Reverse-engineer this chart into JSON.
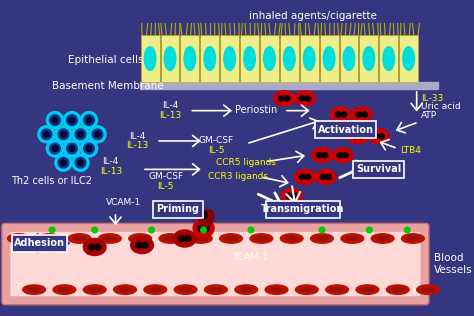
{
  "bg_color": "#353580",
  "figsize": [
    4.74,
    3.16
  ],
  "dpi": 100,
  "title_text": "inhaled agents/cigarette",
  "epithelial_label": "Epithelial cells",
  "basement_label": "Basement Membrane",
  "th2_label": "Th2 cells or ILC2",
  "blood_vessels_label": "Blood\nVessels",
  "adhesion_label": "Adhesion",
  "priming_label": "Priming",
  "transmigration_label": "Transmigration",
  "activation_label": "Activation",
  "survival_label": "Survival",
  "icam_label": "ICAM-1",
  "vcam_label": "VCAM-1",
  "periostin_label": "Periostin",
  "ltb4_label": "LTB4",
  "ep_cell_color": "#EEEE88",
  "ep_nuc_color": "#00DDDD",
  "ep_border_color": "#CCAA00",
  "cilia_color": "#BBAA00",
  "bm_color": "#AAAACC",
  "th2_outer_color": "#00CCEE",
  "th2_inner_color": "#003399",
  "th2_core_color": "#000022",
  "eos_color": "#CC0000",
  "eos_nuc_color": "#110000",
  "rbc_color": "#BB1100",
  "vessel_outer_color": "#E8A0A0",
  "vessel_inner_color": "#FFD8D8",
  "icam_dot_color": "#00CC00",
  "box_edge_color": "white",
  "box_face_color": "#353580",
  "arrow_color": "white",
  "blue_arrow_color": "#2244CC",
  "white_text_color": "white",
  "yellow_text_color": "#FFFF00"
}
